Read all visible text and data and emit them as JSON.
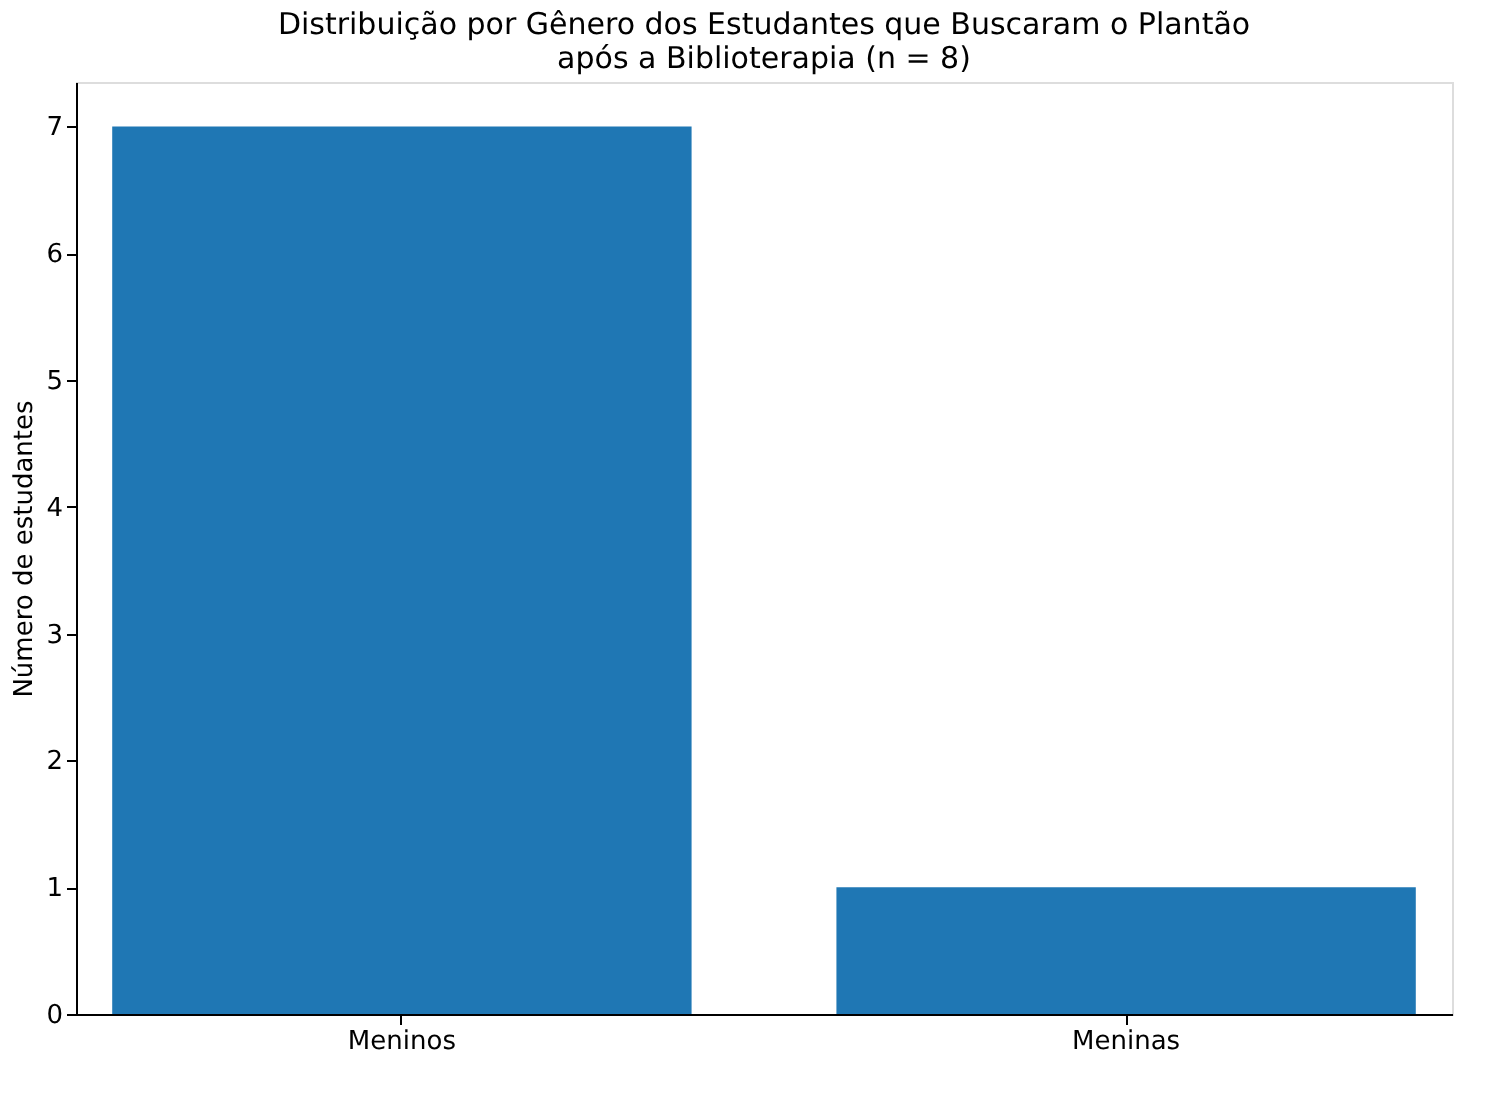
{
  "chart_data": {
    "type": "bar",
    "title": "Distribuição por Gênero dos Estudantes que Buscaram o Plantão\napós a Biblioterapia (n = 8)",
    "ylabel": "Número de estudantes",
    "categories": [
      "Meninos",
      "Meninas"
    ],
    "values": [
      7,
      1
    ],
    "color": "#1f77b4",
    "ylim": [
      0,
      7.35
    ],
    "yticks": [
      0,
      1,
      2,
      3,
      4,
      5,
      6,
      7
    ],
    "grid": false
  }
}
